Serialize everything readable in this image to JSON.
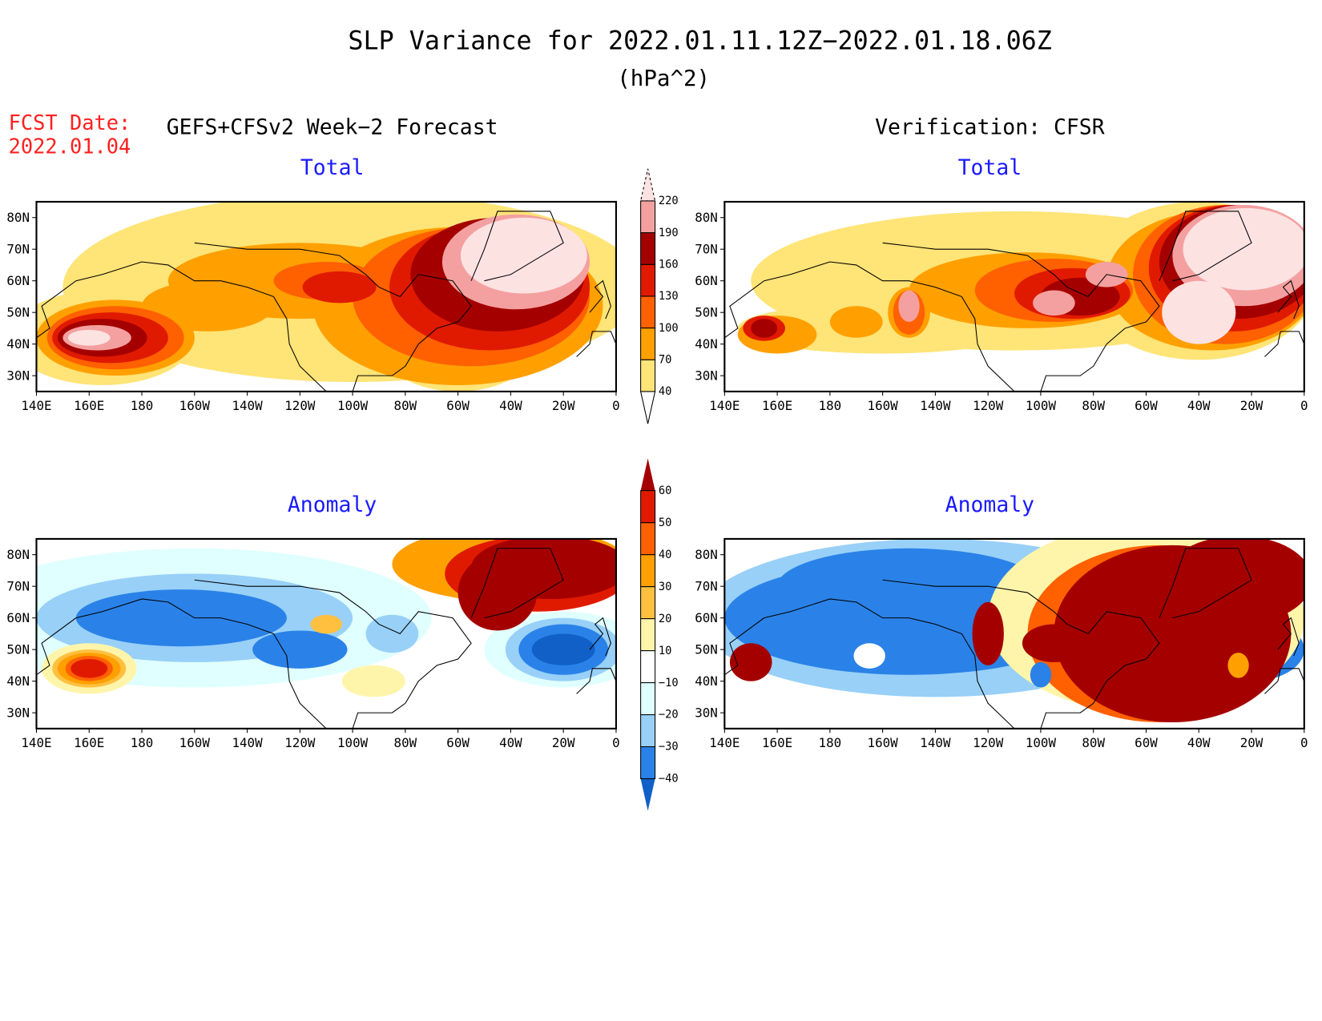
{
  "title": "SLP Variance for 2022.01.11.12Z−2022.01.18.06Z",
  "units": "(hPa^2)",
  "fcst_date_label": "FCST Date:",
  "fcst_date_value": "2022.01.04",
  "left_header": "GEFS+CFSv2 Week−2 Forecast",
  "right_header": "Verification: CFSR",
  "chart_data": [
    {
      "type": "heatmap",
      "panel": "forecast-total",
      "title": "Total",
      "xlabel": "",
      "ylabel": "",
      "x_ticks": [
        "140E",
        "160E",
        "180",
        "160W",
        "140W",
        "120W",
        "100W",
        "80W",
        "60W",
        "40W",
        "20W",
        "0"
      ],
      "y_ticks": [
        "30N",
        "40N",
        "50N",
        "60N",
        "70N",
        "80N"
      ],
      "lon_range": [
        140,
        360
      ],
      "lat_range": [
        25,
        85
      ]
    },
    {
      "type": "heatmap",
      "panel": "verification-total",
      "title": "Total",
      "x_ticks": [
        "140E",
        "160E",
        "180",
        "160W",
        "140W",
        "120W",
        "100W",
        "80W",
        "60W",
        "40W",
        "20W",
        "0"
      ],
      "y_ticks": [
        "30N",
        "40N",
        "50N",
        "60N",
        "70N",
        "80N"
      ],
      "lon_range": [
        140,
        360
      ],
      "lat_range": [
        25,
        85
      ]
    },
    {
      "type": "heatmap",
      "panel": "forecast-anomaly",
      "title": "Anomaly",
      "x_ticks": [
        "140E",
        "160E",
        "180",
        "160W",
        "140W",
        "120W",
        "100W",
        "80W",
        "60W",
        "40W",
        "20W",
        "0"
      ],
      "y_ticks": [
        "30N",
        "40N",
        "50N",
        "60N",
        "70N",
        "80N"
      ],
      "lon_range": [
        140,
        360
      ],
      "lat_range": [
        25,
        85
      ]
    },
    {
      "type": "heatmap",
      "panel": "verification-anomaly",
      "title": "Anomaly",
      "x_ticks": [
        "140E",
        "160E",
        "180",
        "160W",
        "140W",
        "120W",
        "100W",
        "80W",
        "60W",
        "40W",
        "20W",
        "0"
      ],
      "y_ticks": [
        "30N",
        "40N",
        "50N",
        "60N",
        "70N",
        "80N"
      ],
      "lon_range": [
        140,
        360
      ],
      "lat_range": [
        25,
        85
      ]
    }
  ],
  "colorbars": {
    "total": {
      "levels": [
        "40",
        "70",
        "100",
        "130",
        "160",
        "190",
        "220"
      ],
      "colors": [
        "#ffe477",
        "#ffa000",
        "#ff6000",
        "#e01a00",
        "#a50000",
        "#f4a0a0"
      ],
      "over": "#fde2e2",
      "under": "#ffffff"
    },
    "anomaly": {
      "levels": [
        "−40",
        "−30",
        "−20",
        "−10",
        "10",
        "20",
        "30",
        "40",
        "50",
        "60"
      ],
      "colors": [
        "#2a82e8",
        "#98d0f8",
        "#e0ffff",
        "#ffffff",
        "#fff5aa",
        "#ffc040",
        "#ffa000",
        "#ff6000",
        "#e01a00"
      ],
      "over": "#a50000",
      "under": "#1060c8"
    }
  }
}
